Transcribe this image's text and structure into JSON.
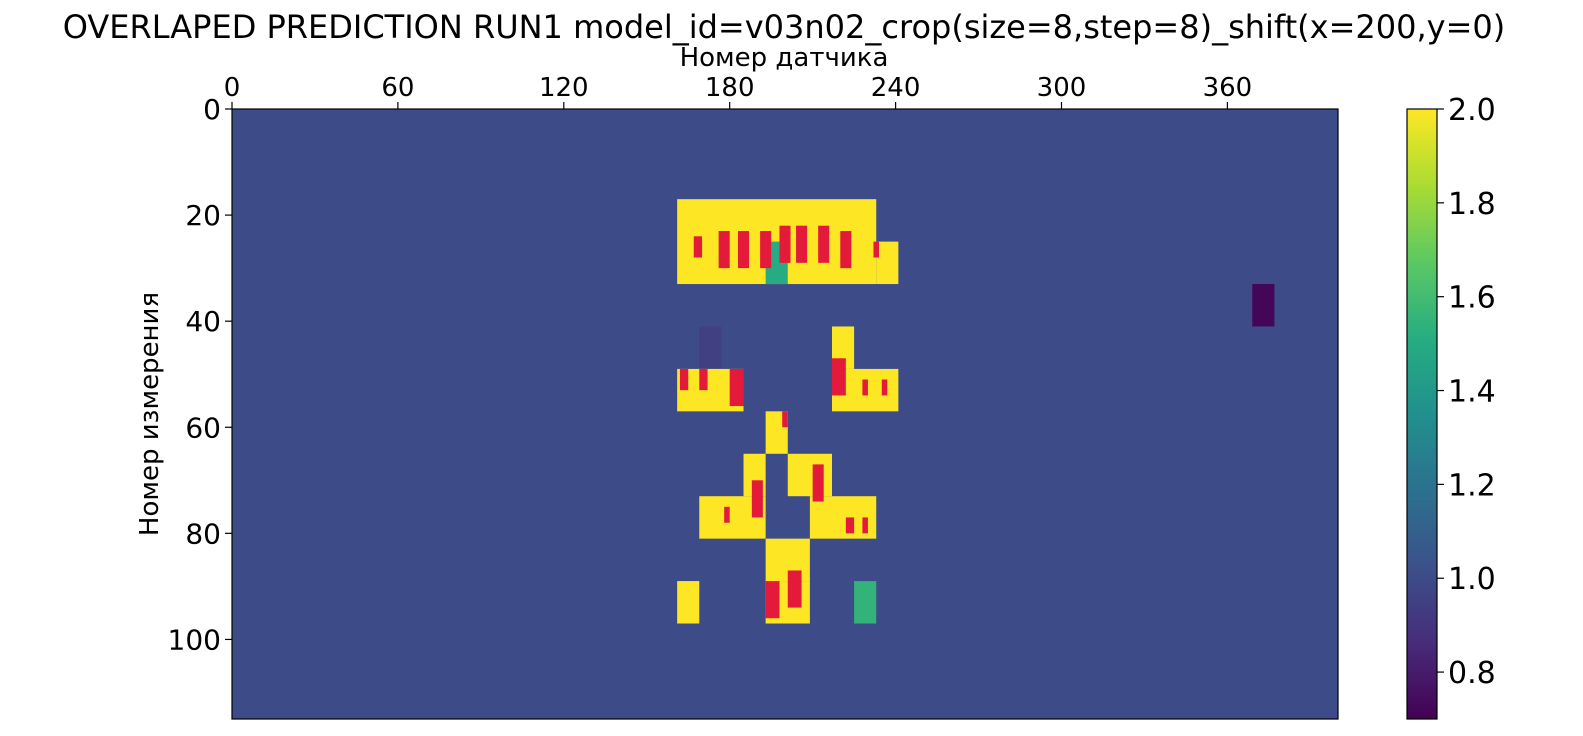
{
  "chart_data": {
    "type": "heatmap",
    "title": "OVERLAPED PREDICTION RUN1 model_id=v03n02_crop(size=8,step=8)_shift(x=200,y=0)",
    "xlabel": "Номер датчика",
    "ylabel": "Номер измерения",
    "x_axis_position": "top",
    "xlim": [
      0,
      400
    ],
    "ylim": [
      115,
      0
    ],
    "x_ticks": [
      0,
      60,
      120,
      180,
      240,
      300,
      360
    ],
    "x_tick_labels": [
      "0",
      "60",
      "120",
      "180",
      "240",
      "300",
      "360"
    ],
    "y_ticks": [
      0,
      20,
      40,
      60,
      80,
      100
    ],
    "y_tick_labels": [
      "0",
      "20",
      "40",
      "60",
      "80",
      "100"
    ],
    "colormap": "viridis",
    "colorbar": {
      "vmin": 0.7,
      "vmax": 2.0,
      "ticks": [
        0.8,
        1.0,
        1.2,
        1.4,
        1.6,
        1.8,
        2.0
      ],
      "tick_labels": [
        "0.8",
        "1.0",
        "1.2",
        "1.4",
        "1.6",
        "1.8",
        "2.0"
      ]
    },
    "background_value": 1.0,
    "overlay_color": "#e31a3a",
    "cells": [
      {
        "x0": 161,
        "x1": 233,
        "y0": 17,
        "y1": 33,
        "value": 2.0
      },
      {
        "x0": 233,
        "x1": 241,
        "y0": 25,
        "y1": 33,
        "value": 2.0
      },
      {
        "x0": 193,
        "x1": 201,
        "y0": 25,
        "y1": 33,
        "value": 1.5
      },
      {
        "x0": 369,
        "x1": 377,
        "y0": 33,
        "y1": 41,
        "value": 0.72
      },
      {
        "x0": 169,
        "x1": 177,
        "y0": 41,
        "y1": 49,
        "value": 0.95
      },
      {
        "x0": 217,
        "x1": 225,
        "y0": 41,
        "y1": 49,
        "value": 2.0
      },
      {
        "x0": 161,
        "x1": 185,
        "y0": 49,
        "y1": 57,
        "value": 2.0
      },
      {
        "x0": 217,
        "x1": 241,
        "y0": 49,
        "y1": 57,
        "value": 2.0
      },
      {
        "x0": 193,
        "x1": 201,
        "y0": 57,
        "y1": 65,
        "value": 2.0
      },
      {
        "x0": 185,
        "x1": 193,
        "y0": 65,
        "y1": 73,
        "value": 2.0
      },
      {
        "x0": 201,
        "x1": 217,
        "y0": 65,
        "y1": 73,
        "value": 2.0
      },
      {
        "x0": 169,
        "x1": 193,
        "y0": 73,
        "y1": 81,
        "value": 2.0
      },
      {
        "x0": 209,
        "x1": 233,
        "y0": 73,
        "y1": 81,
        "value": 2.0
      },
      {
        "x0": 193,
        "x1": 209,
        "y0": 81,
        "y1": 89,
        "value": 2.0
      },
      {
        "x0": 161,
        "x1": 169,
        "y0": 89,
        "y1": 97,
        "value": 2.0
      },
      {
        "x0": 193,
        "x1": 209,
        "y0": 89,
        "y1": 97,
        "value": 2.0
      },
      {
        "x0": 225,
        "x1": 233,
        "y0": 89,
        "y1": 97,
        "value": 1.55
      }
    ],
    "overlay_marks": [
      {
        "x0": 167,
        "x1": 170,
        "y0": 24,
        "y1": 28
      },
      {
        "x0": 176,
        "x1": 180,
        "y0": 23,
        "y1": 30
      },
      {
        "x0": 183,
        "x1": 187,
        "y0": 23,
        "y1": 30
      },
      {
        "x0": 191,
        "x1": 195,
        "y0": 23,
        "y1": 30
      },
      {
        "x0": 198,
        "x1": 202,
        "y0": 22,
        "y1": 29
      },
      {
        "x0": 204,
        "x1": 208,
        "y0": 22,
        "y1": 29
      },
      {
        "x0": 212,
        "x1": 216,
        "y0": 22,
        "y1": 29
      },
      {
        "x0": 220,
        "x1": 224,
        "y0": 23,
        "y1": 30
      },
      {
        "x0": 232,
        "x1": 234,
        "y0": 25,
        "y1": 28
      },
      {
        "x0": 162,
        "x1": 165,
        "y0": 49,
        "y1": 53
      },
      {
        "x0": 169,
        "x1": 172,
        "y0": 49,
        "y1": 53
      },
      {
        "x0": 180,
        "x1": 185,
        "y0": 49,
        "y1": 56
      },
      {
        "x0": 217,
        "x1": 222,
        "y0": 47,
        "y1": 54
      },
      {
        "x0": 228,
        "x1": 230,
        "y0": 51,
        "y1": 54
      },
      {
        "x0": 235,
        "x1": 237,
        "y0": 51,
        "y1": 54
      },
      {
        "x0": 199,
        "x1": 201,
        "y0": 57,
        "y1": 60
      },
      {
        "x0": 210,
        "x1": 214,
        "y0": 67,
        "y1": 74
      },
      {
        "x0": 188,
        "x1": 192,
        "y0": 70,
        "y1": 77
      },
      {
        "x0": 178,
        "x1": 180,
        "y0": 75,
        "y1": 78
      },
      {
        "x0": 222,
        "x1": 225,
        "y0": 77,
        "y1": 80
      },
      {
        "x0": 228,
        "x1": 230,
        "y0": 77,
        "y1": 80
      },
      {
        "x0": 201,
        "x1": 206,
        "y0": 87,
        "y1": 94
      },
      {
        "x0": 193,
        "x1": 198,
        "y0": 89,
        "y1": 96
      }
    ]
  }
}
